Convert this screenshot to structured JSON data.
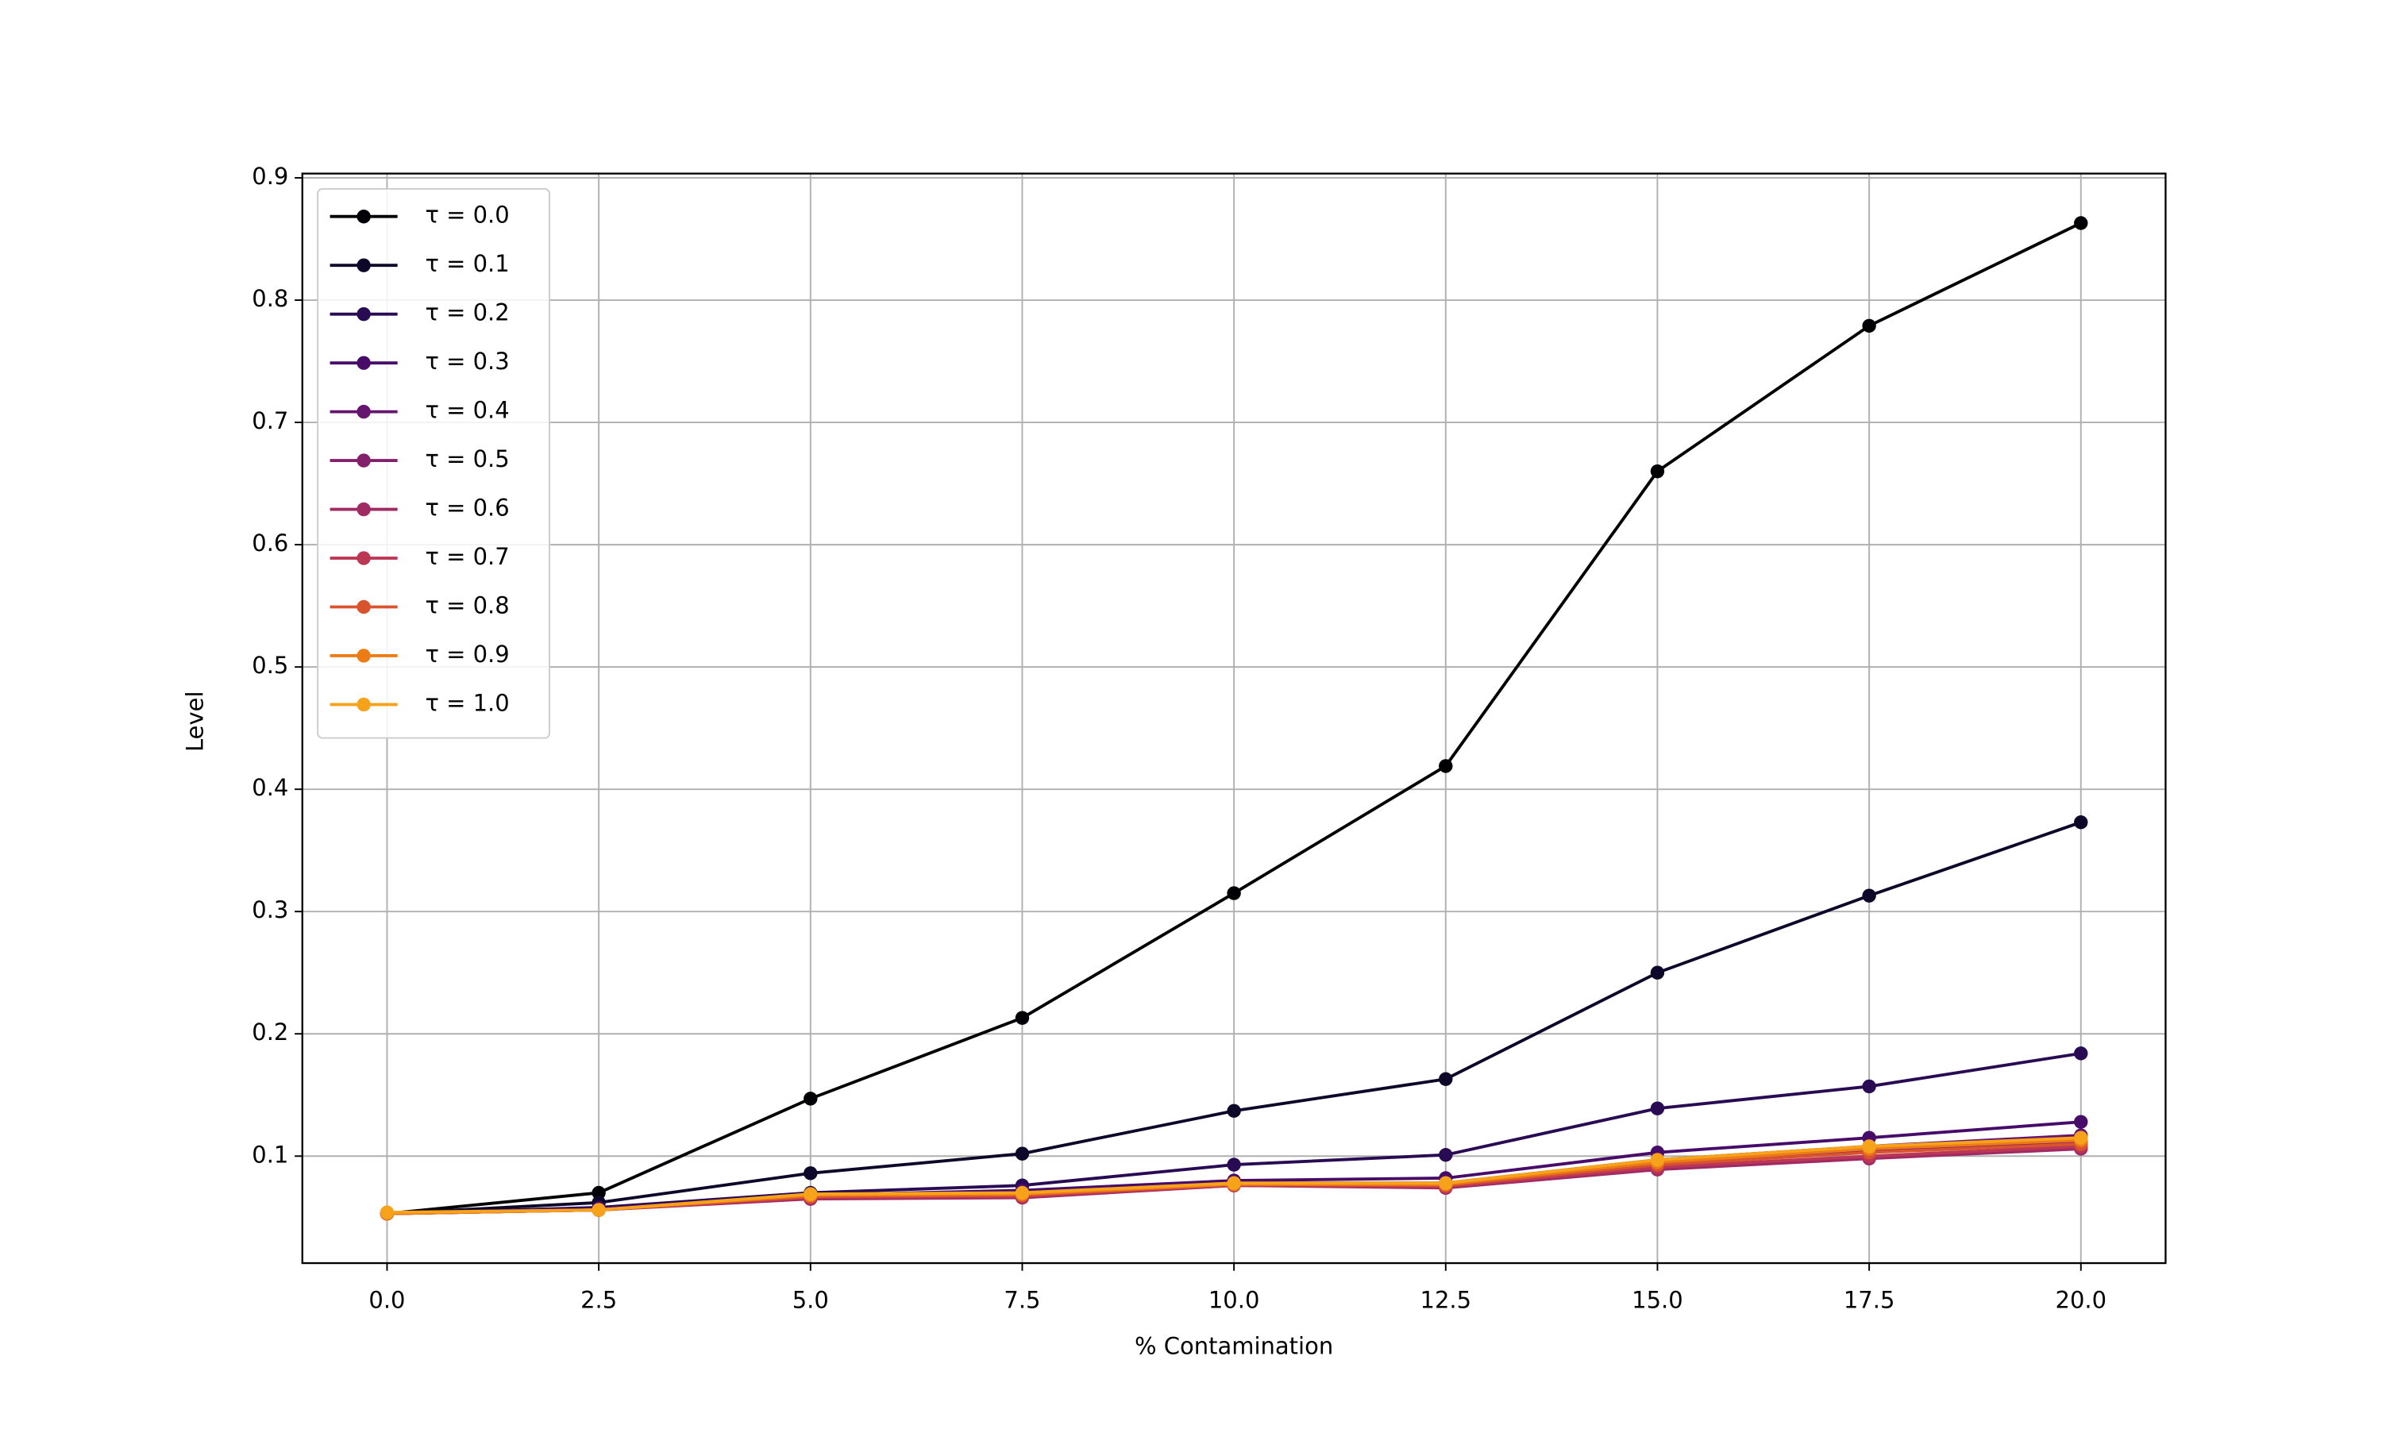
{
  "chart_data": {
    "type": "line",
    "xlabel": "% Contamination",
    "ylabel": "Level",
    "x": [
      0,
      2.5,
      5,
      7.5,
      10,
      12.5,
      15,
      17.5,
      20
    ],
    "xlim": [
      -1,
      21
    ],
    "xticks": [
      {
        "value": 0,
        "label": "0.0"
      },
      2.5,
      {
        "value": 5,
        "label": "5.0"
      },
      7.5,
      {
        "value": 10,
        "label": "10.0"
      },
      12.5,
      {
        "value": 15,
        "label": "15.0"
      },
      17.5,
      {
        "value": 20,
        "label": "20.0"
      }
    ],
    "ylim": [
      0.0125,
      0.9035
    ],
    "yticks": [
      0.1,
      0.2,
      0.3,
      0.4,
      0.5,
      0.6,
      0.7,
      0.8,
      0.9
    ],
    "grid": true,
    "legend": "upper left",
    "series": [
      {
        "name": "τ = 0.0",
        "color": "#000004",
        "values": [
          0.053,
          0.07,
          0.147,
          0.213,
          0.315,
          0.419,
          0.66,
          0.779,
          0.863
        ]
      },
      {
        "name": "τ = 0.1",
        "color": "#0d0829",
        "values": [
          0.053,
          0.062,
          0.086,
          0.102,
          0.137,
          0.163,
          0.25,
          0.313,
          0.373
        ]
      },
      {
        "name": "τ = 0.2",
        "color": "#280b53",
        "values": [
          0.053,
          0.058,
          0.07,
          0.076,
          0.093,
          0.101,
          0.139,
          0.157,
          0.184
        ]
      },
      {
        "name": "τ = 0.3",
        "color": "#470b6a",
        "values": [
          0.053,
          0.057,
          0.068,
          0.072,
          0.08,
          0.082,
          0.103,
          0.115,
          0.128
        ]
      },
      {
        "name": "τ = 0.4",
        "color": "#65156e",
        "values": [
          0.053,
          0.056,
          0.067,
          0.069,
          0.078,
          0.078,
          0.097,
          0.108,
          0.117
        ]
      },
      {
        "name": "τ = 0.5",
        "color": "#82206c",
        "values": [
          0.053,
          0.056,
          0.066,
          0.068,
          0.077,
          0.077,
          0.094,
          0.105,
          0.112
        ]
      },
      {
        "name": "τ = 0.6",
        "color": "#a02a63",
        "values": [
          0.053,
          0.056,
          0.065,
          0.066,
          0.076,
          0.074,
          0.089,
          0.098,
          0.106
        ]
      },
      {
        "name": "τ = 0.7",
        "color": "#bc3754",
        "values": [
          0.053,
          0.056,
          0.066,
          0.067,
          0.076,
          0.075,
          0.091,
          0.1,
          0.108
        ]
      },
      {
        "name": "τ = 0.8",
        "color": "#d9532f",
        "values": [
          0.053,
          0.056,
          0.067,
          0.068,
          0.077,
          0.076,
          0.093,
          0.103,
          0.11
        ]
      },
      {
        "name": "τ = 0.9",
        "color": "#ee7c16",
        "values": [
          0.053,
          0.056,
          0.068,
          0.069,
          0.077,
          0.077,
          0.095,
          0.106,
          0.113
        ]
      },
      {
        "name": "τ = 1.0",
        "color": "#f6a21a",
        "values": [
          0.054,
          0.056,
          0.069,
          0.07,
          0.078,
          0.078,
          0.097,
          0.108,
          0.115
        ]
      }
    ]
  }
}
